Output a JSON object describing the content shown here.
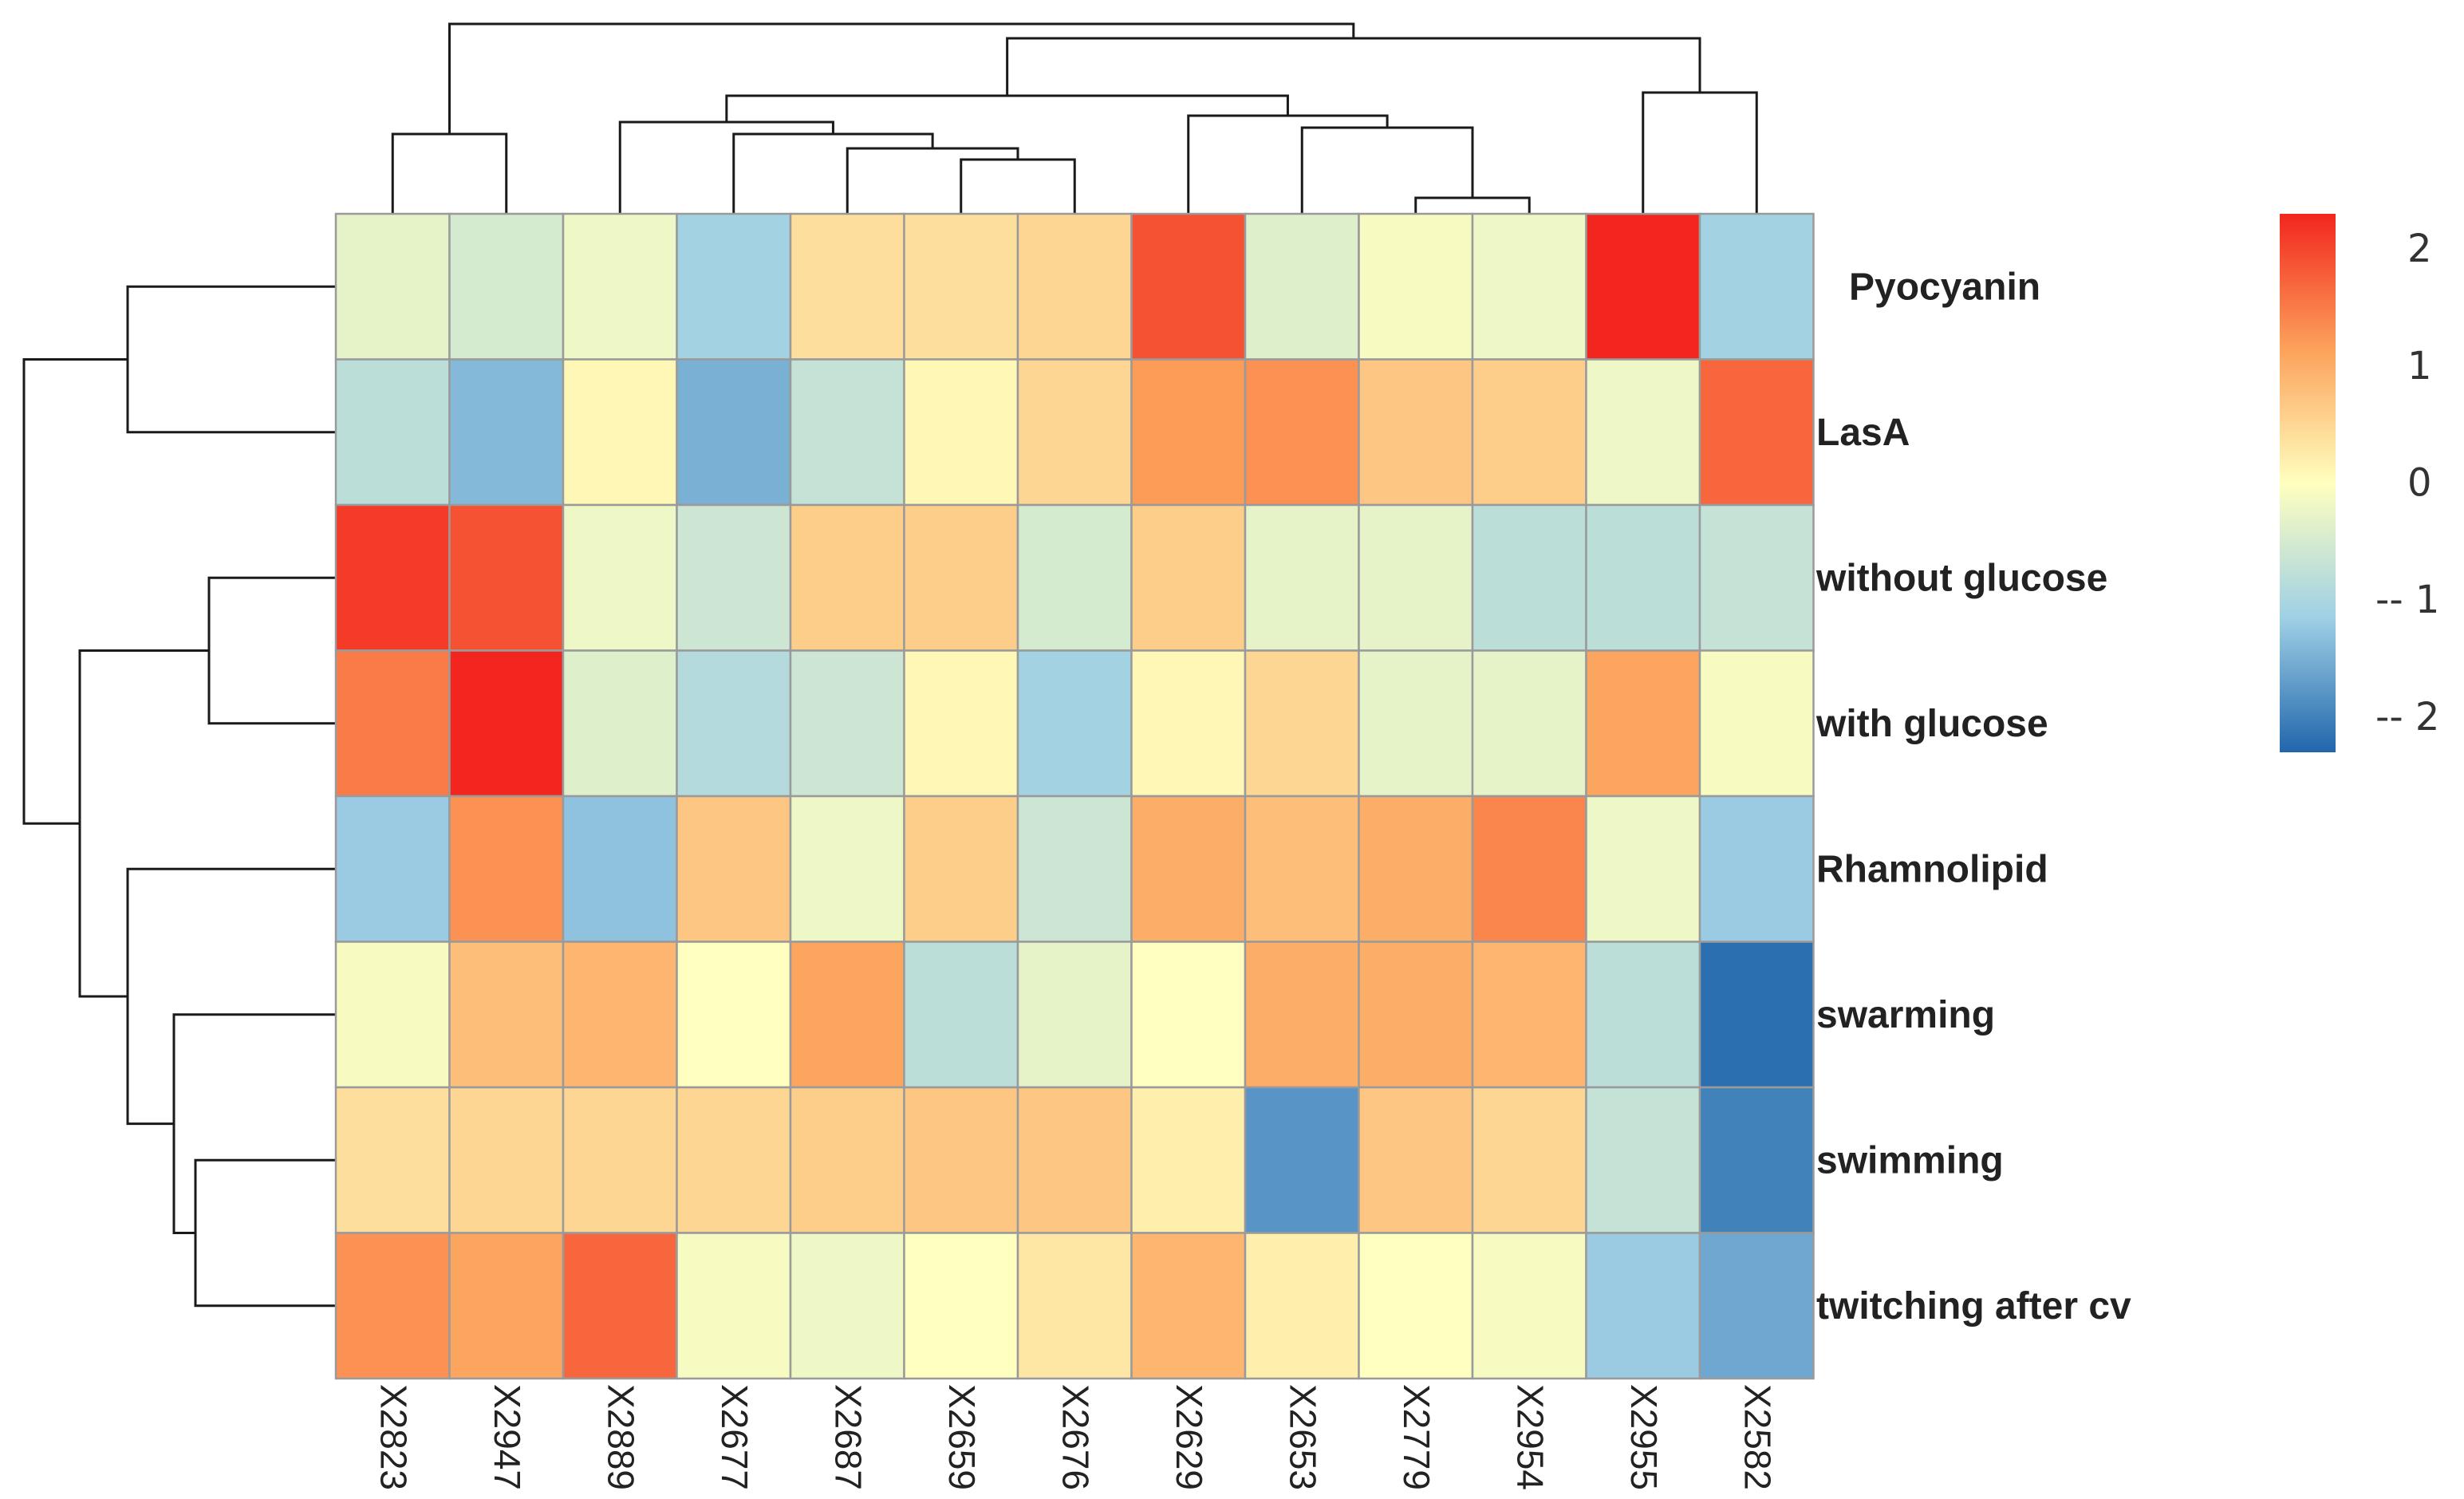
{
  "chart_data": {
    "type": "heatmap",
    "rows": [
      "Pyocyanin",
      "LasA",
      "without glucose",
      "with glucose",
      "Rhamnolipid",
      "swarming",
      "swimming",
      "twitching after cv"
    ],
    "columns": [
      "X2823",
      "X2947",
      "X2889",
      "X2677",
      "X2687",
      "X2659",
      "X2676",
      "X2629",
      "X2653",
      "X2779",
      "X2954",
      "X2955",
      "X2582"
    ],
    "values": [
      [
        -0.3,
        -0.5,
        -0.2,
        -1.1,
        0.4,
        0.4,
        0.5,
        1.9,
        -0.4,
        -0.1,
        -0.2,
        2.3,
        -1.1
      ],
      [
        -0.8,
        -1.4,
        0.1,
        -1.5,
        -0.7,
        0.1,
        0.5,
        1.2,
        1.3,
        0.7,
        0.6,
        -0.2,
        1.7
      ],
      [
        2.1,
        1.9,
        -0.2,
        -0.6,
        0.6,
        0.6,
        -0.5,
        0.6,
        -0.3,
        -0.3,
        -0.8,
        -0.8,
        -0.7
      ],
      [
        1.5,
        2.3,
        -0.4,
        -0.9,
        -0.6,
        0.1,
        -1.1,
        0.1,
        0.5,
        -0.3,
        -0.3,
        1.1,
        -0.1
      ],
      [
        -1.2,
        1.3,
        -1.3,
        0.7,
        -0.2,
        0.6,
        -0.6,
        1.0,
        0.8,
        1.0,
        1.4,
        -0.2,
        -1.2
      ],
      [
        -0.1,
        0.8,
        0.9,
        0.0,
        1.1,
        -0.8,
        -0.3,
        0.0,
        1.0,
        1.0,
        0.9,
        -0.8,
        -2.2
      ],
      [
        0.4,
        0.5,
        0.5,
        0.5,
        0.6,
        0.7,
        0.7,
        0.2,
        -1.8,
        0.7,
        0.5,
        -0.7,
        -2.0
      ],
      [
        1.3,
        1.1,
        1.7,
        -0.1,
        -0.2,
        0.0,
        0.3,
        0.9,
        0.2,
        0.0,
        -0.1,
        -1.2,
        -1.6
      ]
    ],
    "legend": {
      "ticks": [
        "2",
        "1",
        "0",
        "-- 1",
        "-- 2"
      ],
      "tick_values": [
        2,
        1,
        0,
        -1,
        -2
      ],
      "min": -2.3,
      "max": 2.3
    },
    "colors": {
      "low": "#2166ac",
      "mid": "#ffffbf",
      "high": "#f2261e",
      "grid": "#9a9a9a",
      "dendrogram": "#1a1a1a"
    },
    "row_dendrogram": true,
    "column_dendrogram": true,
    "legend_position": "right"
  }
}
